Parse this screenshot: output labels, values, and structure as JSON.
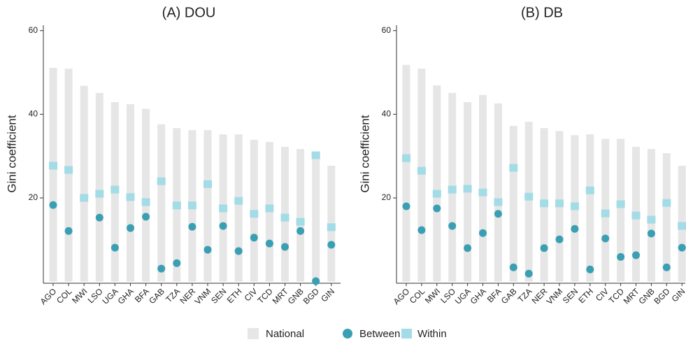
{
  "chart_data": [
    {
      "type": "bar-dot",
      "title": "(A) DOU",
      "ylabel": "Gini coefficient",
      "categories": [
        "AGO",
        "COL",
        "MWI",
        "LSO",
        "UGA",
        "GHA",
        "BFA",
        "GAB",
        "TZA",
        "NER",
        "VNM",
        "SEN",
        "ETH",
        "CIV",
        "TCD",
        "MRT",
        "GNB",
        "BGD",
        "GIN"
      ],
      "series": [
        {
          "name": "National",
          "color": "#e6e6e6",
          "values": [
            51.1,
            50.9,
            46.8,
            45.1,
            42.9,
            42.4,
            41.3,
            37.6,
            36.7,
            36.2,
            36.2,
            35.2,
            35.2,
            33.9,
            33.4,
            32.2,
            31.7,
            30.7,
            27.7
          ]
        },
        {
          "name": "Between",
          "color": "#3a9fb3",
          "values": [
            18.3,
            12.1,
            null,
            15.3,
            8.1,
            12.8,
            15.5,
            3.1,
            4.4,
            13.1,
            7.6,
            13.3,
            7.3,
            10.5,
            9.1,
            8.3,
            12.1,
            0.1,
            8.8
          ]
        },
        {
          "name": "Within",
          "color": "#a3dce6",
          "values": [
            27.7,
            26.7,
            20.0,
            21.0,
            22.0,
            20.2,
            19.0,
            24.0,
            18.2,
            18.2,
            23.3,
            17.5,
            19.3,
            16.2,
            17.5,
            15.3,
            14.3,
            30.2,
            13.0
          ]
        }
      ],
      "ylim": [
        -0.4,
        61.3
      ],
      "yticks": [
        20,
        40,
        60
      ]
    },
    {
      "type": "bar-dot",
      "title": "(B) DB",
      "ylabel": "Gini coefficient",
      "categories": [
        "AGO",
        "COL",
        "MWI",
        "LSO",
        "UGA",
        "GHA",
        "BFA",
        "GAB",
        "TZA",
        "NER",
        "VNM",
        "SEN",
        "ETH",
        "CIV",
        "TCD",
        "MRT",
        "GNB",
        "BGD",
        "GIN"
      ],
      "series": [
        {
          "color": "#e6e6e6",
          "values": [
            51.8,
            50.9,
            46.9,
            45.1,
            42.9,
            44.6,
            42.6,
            37.2,
            38.2,
            36.7,
            36.0,
            35.0,
            35.2,
            34.1,
            34.1,
            32.2,
            31.7,
            30.7,
            27.7
          ]
        },
        {
          "color": "#3a9fb3",
          "values": [
            18.0,
            12.3,
            17.5,
            13.3,
            8.0,
            11.6,
            16.2,
            3.4,
            1.9,
            8.0,
            10.1,
            12.6,
            2.9,
            10.3,
            5.9,
            6.3,
            11.5,
            3.4,
            8.1
          ]
        },
        {
          "color": "#a3dce6",
          "values": [
            29.5,
            26.5,
            21.0,
            22.0,
            22.2,
            21.3,
            19.0,
            27.2,
            20.3,
            18.7,
            18.7,
            18.0,
            21.8,
            16.3,
            18.5,
            15.8,
            14.8,
            18.8,
            13.3
          ]
        }
      ],
      "ylim": [
        -0.4,
        61.3
      ],
      "yticks": [
        20,
        40,
        60
      ]
    }
  ]
}
